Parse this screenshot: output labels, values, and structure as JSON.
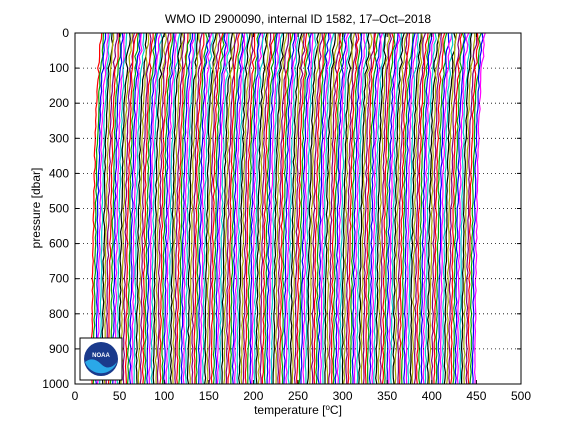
{
  "chart_data": {
    "type": "line",
    "title": "WMO ID 2900090, internal ID 1582, 17–Oct–2018",
    "xlabel": "temperature [",
    "xlabel_unit": "o",
    "xlabel_suffix": "C]",
    "ylabel": "pressure [dbar]",
    "xlim": [
      0,
      500
    ],
    "ylim": [
      0,
      1000
    ],
    "y_inverted": true,
    "x_ticks": [
      0,
      50,
      100,
      150,
      200,
      250,
      300,
      350,
      400,
      450,
      500
    ],
    "y_ticks": [
      0,
      100,
      200,
      300,
      400,
      500,
      600,
      700,
      800,
      900,
      1000
    ],
    "grid": "dotted",
    "profile_count": 180,
    "profile_offset_step": 2.4,
    "profile_start": 20,
    "colors": [
      "#ff0000",
      "#00aa00",
      "#0000ff",
      "#ff00ff",
      "#00cccc",
      "#000000",
      "#aaaa00",
      "#7f007f"
    ],
    "logo": "noaa-logo"
  }
}
